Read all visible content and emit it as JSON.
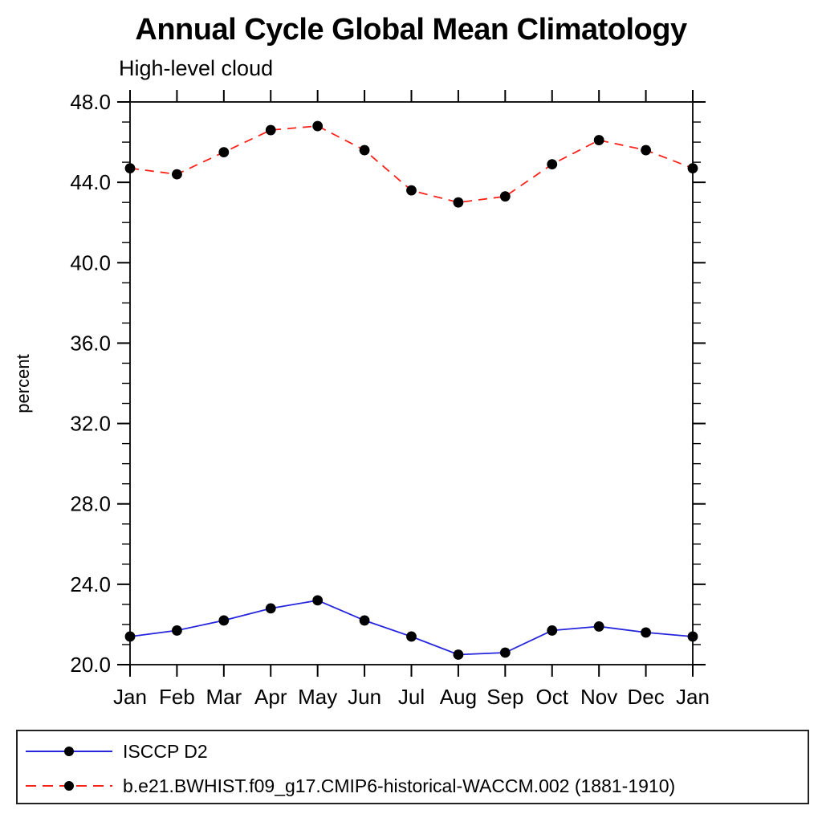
{
  "page": {
    "title": "Annual Cycle Global Mean Climatology",
    "subtitle": "High-level cloud"
  },
  "chart_data": {
    "type": "line",
    "title": "Annual Cycle Global Mean Climatology",
    "subtitle": "High-level cloud",
    "xlabel": "",
    "ylabel": "percent",
    "ylim": [
      20.0,
      48.0
    ],
    "ytick_major_step": 4.0,
    "ytick_minor_step": 1.0,
    "ytick_labels": [
      "20.0",
      "24.0",
      "28.0",
      "32.0",
      "36.0",
      "40.0",
      "44.0",
      "48.0"
    ],
    "categories": [
      "Jan",
      "Feb",
      "Mar",
      "Apr",
      "May",
      "Jun",
      "Jul",
      "Aug",
      "Sep",
      "Oct",
      "Nov",
      "Dec",
      "Jan"
    ],
    "grid": false,
    "legend_position": "bottom-left-box",
    "frame_color": "#1a1a1a",
    "marker_color": "#000000",
    "series": [
      {
        "name": "ISCCP D2",
        "color": "#2525dd",
        "style": "solid",
        "marker": "filled-circle",
        "values": [
          21.4,
          21.7,
          22.2,
          22.8,
          23.2,
          22.2,
          21.4,
          20.5,
          20.6,
          21.7,
          21.9,
          21.6,
          21.4
        ]
      },
      {
        "name": "b.e21.BWHIST.f09_g17.CMIP6-historical-WACCM.002 (1881-1910)",
        "color": "#fb221a",
        "style": "dashed",
        "marker": "filled-circle",
        "values": [
          44.7,
          44.4,
          45.5,
          46.6,
          46.8,
          45.6,
          43.6,
          43.0,
          43.3,
          44.9,
          46.1,
          45.6,
          44.7
        ]
      }
    ]
  }
}
